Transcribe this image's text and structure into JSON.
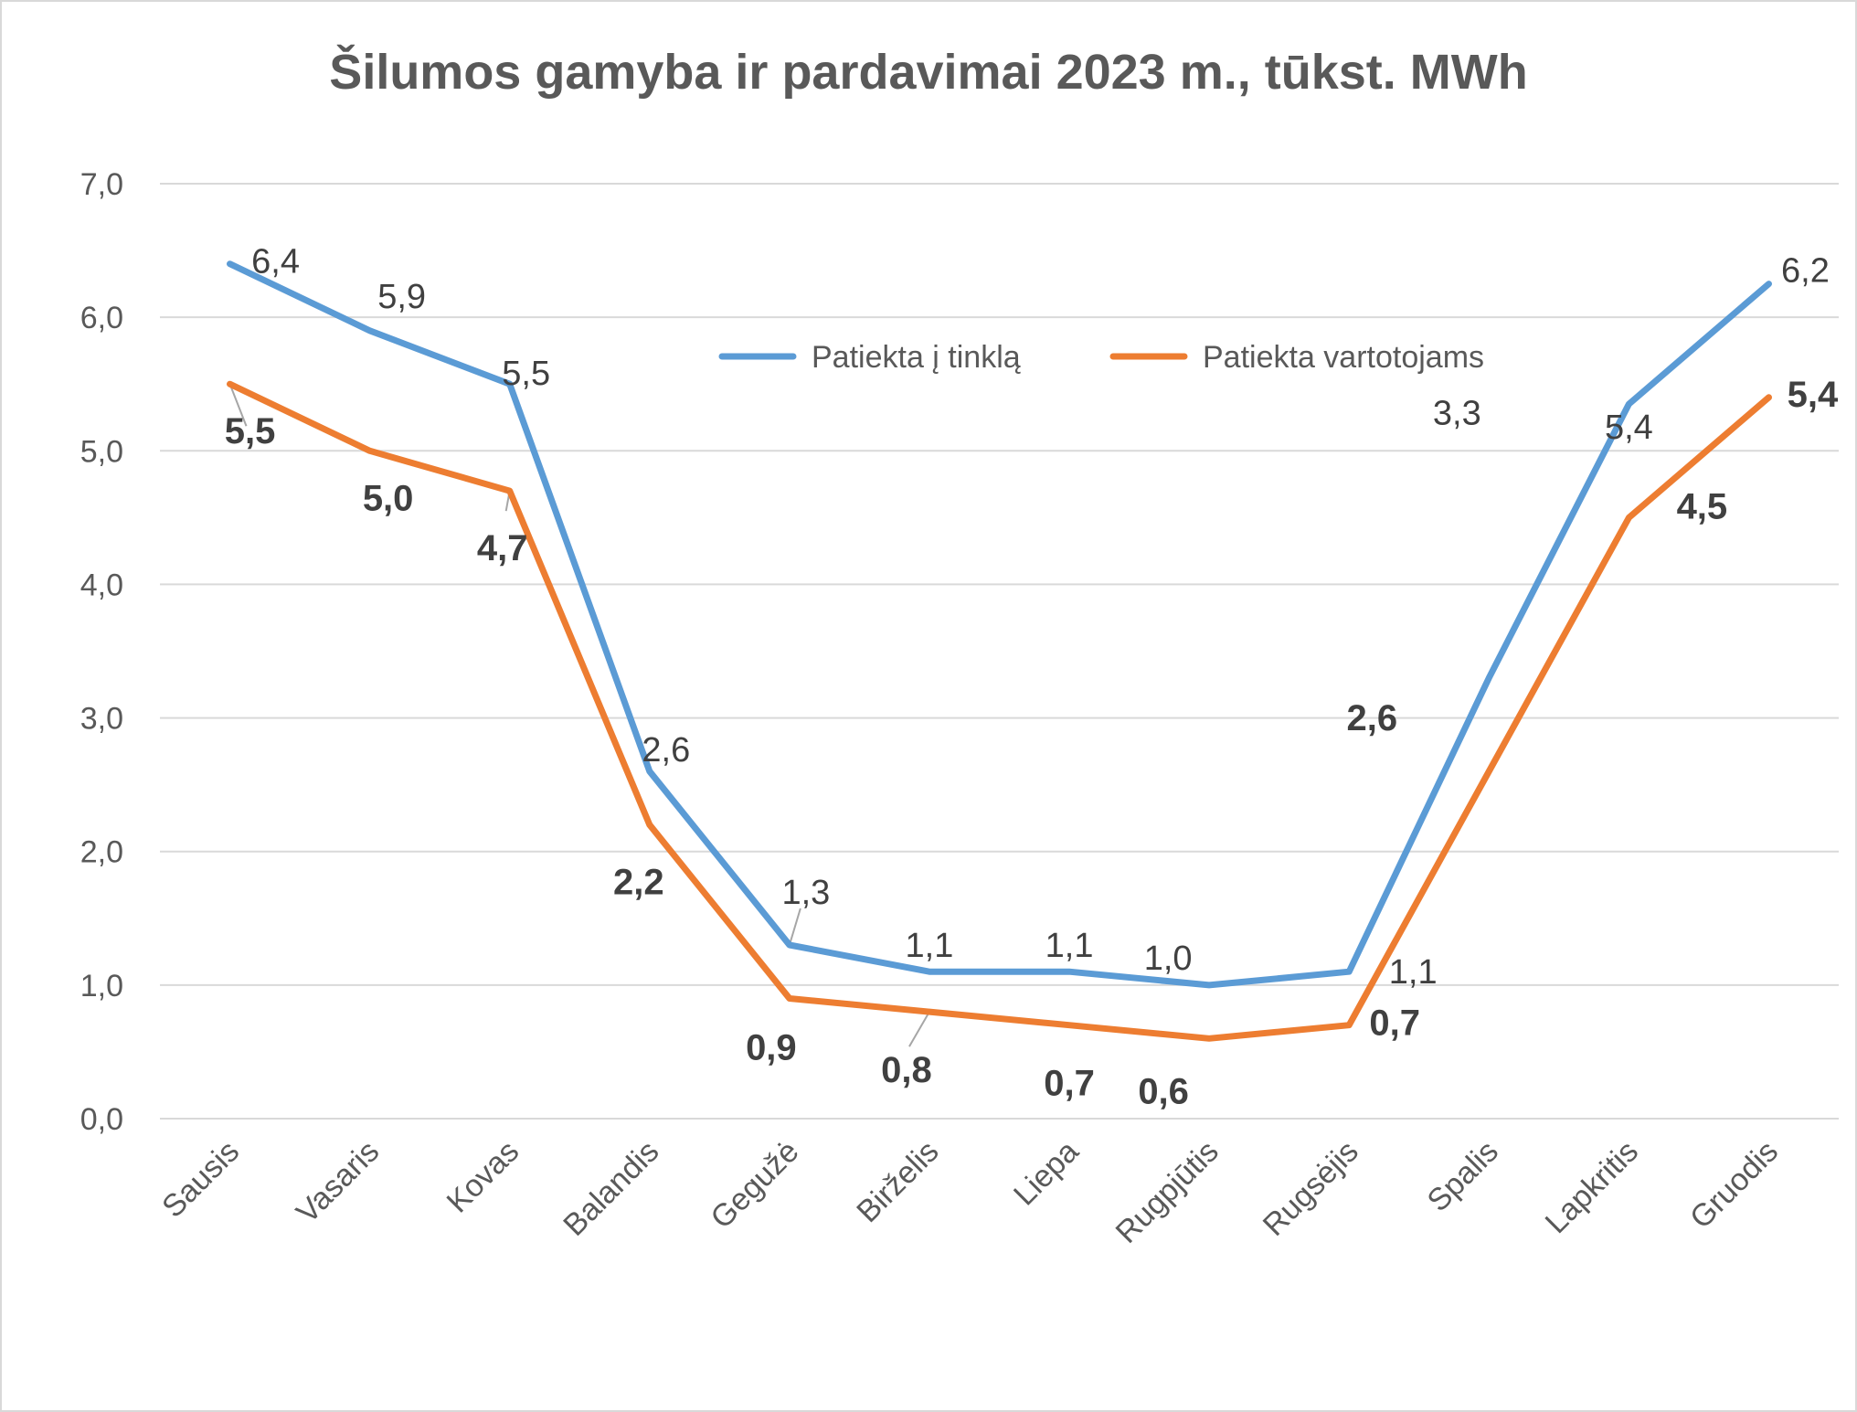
{
  "chart_data": {
    "type": "line",
    "title": "Šilumos gamyba ir pardavimai 2023 m., tūkst. MWh",
    "xlabel": "",
    "ylabel": "",
    "categories": [
      "Sausis",
      "Vasaris",
      "Kovas",
      "Balandis",
      "Gegužė",
      "Birželis",
      "Liepa",
      "Rugpjūtis",
      "Rugsėjis",
      "Spalis",
      "Lapkritis",
      "Gruodis"
    ],
    "ylim": [
      0,
      7
    ],
    "yticks": [
      "0,0",
      "1,0",
      "2,0",
      "3,0",
      "4,0",
      "5,0",
      "6,0",
      "7,0"
    ],
    "grid": true,
    "legend_position": "top-center",
    "series": [
      {
        "name": "Patiekta į tinklą",
        "color": "#5b9bd5",
        "values": [
          6.4,
          5.9,
          5.5,
          2.6,
          1.3,
          1.1,
          1.1,
          1.0,
          1.1,
          3.3,
          5.35,
          6.25
        ],
        "labels": [
          "6,4",
          "5,9",
          "5,5",
          "2,6",
          "1,3",
          "1,1",
          "1,1",
          "1,0",
          "1,1",
          "3,3",
          "5,4",
          "6,2"
        ],
        "label_style": "regular"
      },
      {
        "name": "Patiekta vartotojams",
        "color": "#ed7d31",
        "values": [
          5.5,
          5.0,
          4.7,
          2.2,
          0.9,
          0.8,
          0.7,
          0.6,
          0.7,
          2.6,
          4.5,
          5.4
        ],
        "labels": [
          "5,5",
          "5,0",
          "4,7",
          "2,2",
          "0,9",
          "0,8",
          "0,7",
          "0,6",
          "0,7",
          "2,6",
          "4,5",
          "5,4"
        ],
        "label_style": "bold"
      }
    ]
  }
}
